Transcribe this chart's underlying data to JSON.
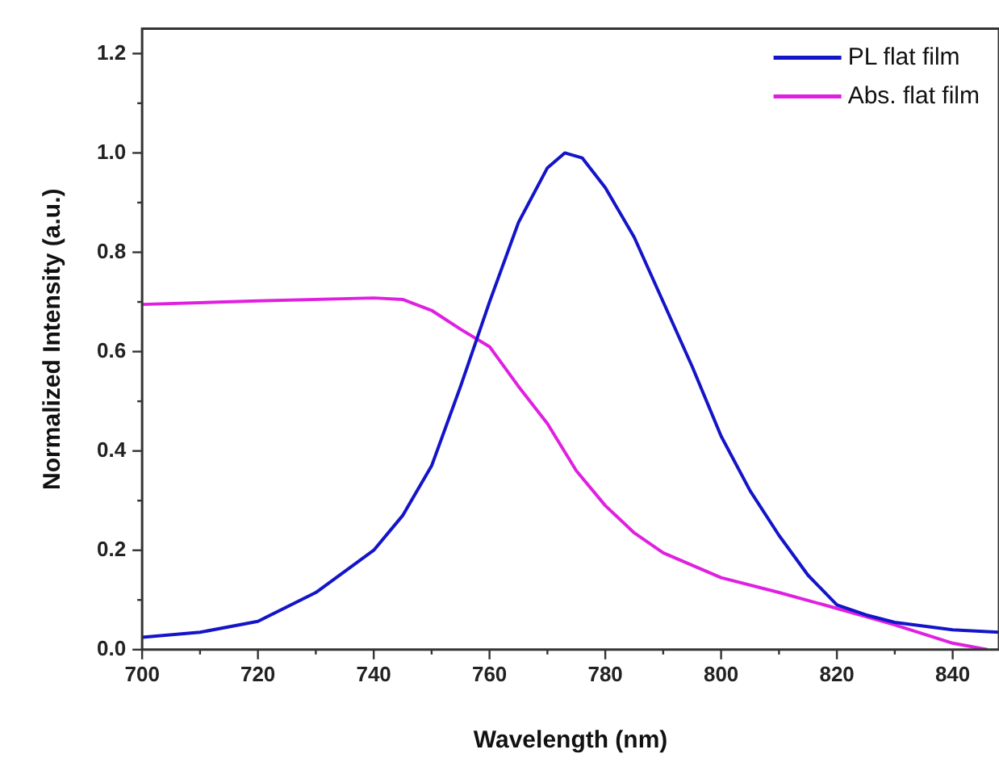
{
  "chart_data": {
    "type": "line",
    "xlabel": "Wavelength (nm)",
    "ylabel": "Normalized Intensity (a.u.)",
    "xlim": [
      700,
      848
    ],
    "xticks": [
      700,
      720,
      740,
      760,
      780,
      800,
      820,
      840
    ],
    "ylim": [
      0,
      1.25
    ],
    "yticks": [
      {
        "value": 0,
        "label": "0.0"
      },
      0.2,
      0.4,
      0.6,
      0.8,
      {
        "value": 1,
        "label": "1.0"
      },
      1.2
    ],
    "legend": "top right",
    "grid": false,
    "marker": "none",
    "line_style": "solid",
    "series": [
      {
        "name": "PL flat film",
        "color": "#1414c8",
        "x": [
          700,
          710,
          720,
          730,
          740,
          745,
          750,
          755,
          760,
          765,
          770,
          773,
          776,
          780,
          785,
          790,
          795,
          800,
          805,
          810,
          815,
          820,
          825,
          830,
          840,
          848
        ],
        "values": [
          0.025,
          0.035,
          0.057,
          0.115,
          0.2,
          0.27,
          0.37,
          0.53,
          0.7,
          0.86,
          0.97,
          1.0,
          0.99,
          0.93,
          0.83,
          0.7,
          0.57,
          0.43,
          0.32,
          0.23,
          0.15,
          0.09,
          0.07,
          0.055,
          0.04,
          0.035
        ]
      },
      {
        "name": "Abs. flat film",
        "color": "#e020e0",
        "x": [
          700,
          720,
          740,
          745,
          750,
          755,
          760,
          765,
          770,
          775,
          780,
          785,
          790,
          800,
          810,
          820,
          830,
          840,
          846
        ],
        "values": [
          0.695,
          0.702,
          0.708,
          0.705,
          0.683,
          0.645,
          0.61,
          0.53,
          0.455,
          0.36,
          0.29,
          0.235,
          0.195,
          0.145,
          0.115,
          0.083,
          0.05,
          0.013,
          0.0
        ]
      }
    ]
  }
}
